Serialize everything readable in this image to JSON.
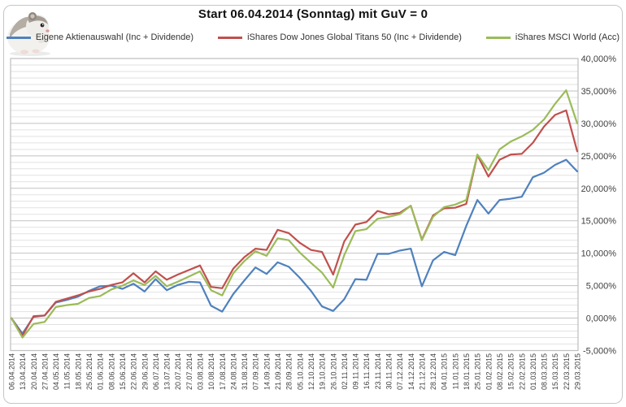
{
  "chart_data": {
    "type": "line",
    "title": "Start 06.04.2014 (Sonntag) mit GuV = 0",
    "categories": [
      "06.04.2014",
      "13.04.2014",
      "20.04.2014",
      "27.04.2014",
      "04.05.2014",
      "11.05.2014",
      "18.05.2014",
      "25.05.2014",
      "01.06.2014",
      "08.06.2014",
      "15.06.2014",
      "22.06.2014",
      "29.06.2014",
      "06.07.2014",
      "13.07.2014",
      "20.07.2014",
      "27.07.2014",
      "03.08.2014",
      "10.08.2014",
      "17.08.2014",
      "24.08.2014",
      "31.08.2014",
      "07.09.2014",
      "14.09.2014",
      "21.09.2014",
      "28.09.2014",
      "05.10.2014",
      "12.10.2014",
      "19.10.2014",
      "26.10.2014",
      "02.11.2014",
      "09.11.2014",
      "16.11.2014",
      "23.11.2014",
      "30.11.2014",
      "07.12.2014",
      "14.12.2014",
      "21.12.2014",
      "28.12.2014",
      "04.01.2015",
      "11.01.2015",
      "18.01.2015",
      "25.01.2015",
      "01.02.2015",
      "08.02.2015",
      "15.02.2015",
      "22.02.2015",
      "01.03.2015",
      "08.03.2015",
      "15.03.2015",
      "22.03.2015",
      "29.03.2015"
    ],
    "series": [
      {
        "name": "Eigene Aktienauswahl (Inc + Dividende)",
        "color": "#4F81BD",
        "values": [
          0,
          -2.4,
          0.2,
          0.4,
          2.4,
          2.8,
          3.3,
          4.2,
          4.9,
          5.0,
          4.5,
          5.3,
          4.1,
          6.0,
          4.3,
          5.1,
          5.6,
          5.5,
          1.9,
          1.0,
          3.7,
          5.8,
          7.8,
          6.8,
          8.6,
          7.9,
          6.2,
          4.2,
          1.8,
          1.1,
          2.9,
          6.0,
          5.9,
          9.9,
          9.9,
          10.4,
          10.7,
          4.9,
          8.9,
          10.2,
          9.7,
          14.2,
          18.2,
          16.1,
          18.2,
          18.4,
          18.7,
          21.7,
          22.4,
          23.6,
          24.4,
          22.6
        ]
      },
      {
        "name": "iShares Dow Jones Global Titans 50 (Inc + Dividende)",
        "color": "#C0504D",
        "values": [
          0,
          -2.7,
          0.3,
          0.4,
          2.5,
          3.0,
          3.5,
          4.1,
          4.5,
          5.1,
          5.5,
          6.9,
          5.5,
          7.2,
          5.9,
          6.7,
          7.4,
          8.1,
          4.8,
          4.6,
          7.6,
          9.4,
          10.7,
          10.5,
          13.6,
          13.1,
          11.6,
          10.5,
          10.2,
          6.7,
          11.8,
          14.4,
          14.8,
          16.5,
          16.0,
          16.2,
          17.3,
          12.1,
          15.8,
          16.9,
          17.0,
          17.6,
          25.1,
          21.8,
          24.4,
          25.2,
          25.3,
          27.0,
          29.5,
          31.3,
          32.0,
          25.7
        ]
      },
      {
        "name": "iShares MSCI World (Acc)",
        "color": "#9BBB59",
        "values": [
          0,
          -3.0,
          -0.9,
          -0.6,
          1.7,
          2.0,
          2.2,
          3.1,
          3.4,
          4.4,
          5.0,
          5.8,
          5.1,
          6.5,
          4.9,
          5.6,
          6.4,
          7.2,
          4.3,
          3.5,
          6.9,
          8.8,
          10.3,
          9.6,
          12.3,
          12.0,
          10.1,
          8.5,
          7.0,
          4.7,
          9.7,
          13.4,
          13.7,
          15.3,
          15.6,
          16.0,
          17.3,
          12.0,
          15.6,
          17.1,
          17.5,
          18.2,
          25.2,
          22.8,
          26.0,
          27.2,
          28.0,
          29.0,
          30.6,
          33.0,
          35.1,
          30.0
        ]
      }
    ],
    "y_axis": {
      "min": -5,
      "max": 40,
      "major_step": 5,
      "minor_step": 1,
      "side": "right",
      "labels": [
        "40,000%",
        "35,000%",
        "30,000%",
        "25,000%",
        "20,000%",
        "15,000%",
        "10,000%",
        "5,000%",
        "0,000%",
        "-5,000%"
      ]
    },
    "x_axis": {
      "label_rotation": -90
    },
    "legend_position": "top",
    "grid": true,
    "colors": {
      "grid_minor": "#e2e2e2",
      "grid_major": "#c2c2c2",
      "plot_border": "#bfbfbf",
      "outer_border": "#c6c6c6",
      "tick_text": "#404040",
      "title_text": "#111111"
    }
  }
}
